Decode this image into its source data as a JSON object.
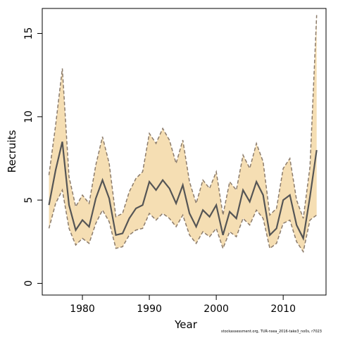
{
  "chart_data": {
    "type": "line",
    "xlabel": "Year",
    "ylabel": "Recruits",
    "xlim": [
      1974,
      2016.4
    ],
    "ylim": [
      -0.7,
      16.5
    ],
    "x_ticks": [
      1980,
      1990,
      2000,
      2010
    ],
    "y_ticks": [
      0,
      5,
      10,
      15
    ],
    "grid": false,
    "colors": {
      "band": "#f5deb3",
      "line": "#555555",
      "bound": "#8b7b6b"
    },
    "x": [
      1975,
      1976,
      1977,
      1978,
      1979,
      1980,
      1981,
      1982,
      1983,
      1984,
      1985,
      1986,
      1987,
      1988,
      1989,
      1990,
      1991,
      1992,
      1993,
      1994,
      1995,
      1996,
      1997,
      1998,
      1999,
      2000,
      2001,
      2002,
      2003,
      2004,
      2005,
      2006,
      2007,
      2008,
      2009,
      2010,
      2011,
      2012,
      2013,
      2014,
      2015
    ],
    "series": [
      {
        "values": [
          4.7,
          6.8,
          8.5,
          4.7,
          3.2,
          3.8,
          3.4,
          5.1,
          6.2,
          5.1,
          2.9,
          3.0,
          3.9,
          4.5,
          4.7,
          6.1,
          5.6,
          6.2,
          5.7,
          4.8,
          5.9,
          4.2,
          3.4,
          4.4,
          4.0,
          4.7,
          2.9,
          4.3,
          3.9,
          5.6,
          4.9,
          6.1,
          5.3,
          2.9,
          3.3,
          5.0,
          5.3,
          3.5,
          2.7,
          5.2,
          8.0
        ]
      },
      {
        "values": [
          6.5,
          9.5,
          12.9,
          6.4,
          4.6,
          5.3,
          4.8,
          7.1,
          8.8,
          7.2,
          4.0,
          4.2,
          5.5,
          6.3,
          6.7,
          9.0,
          8.4,
          9.3,
          8.6,
          7.2,
          8.6,
          6.1,
          4.8,
          6.2,
          5.7,
          6.7,
          4.1,
          6.1,
          5.6,
          7.7,
          6.9,
          8.4,
          7.3,
          4.1,
          4.5,
          6.9,
          7.5,
          5.0,
          3.9,
          7.0,
          16.1
        ]
      },
      {
        "values": [
          3.3,
          4.8,
          5.6,
          3.3,
          2.3,
          2.7,
          2.4,
          3.6,
          4.4,
          3.7,
          2.1,
          2.2,
          2.9,
          3.2,
          3.3,
          4.2,
          3.8,
          4.2,
          3.9,
          3.4,
          4.1,
          2.9,
          2.4,
          3.1,
          2.8,
          3.3,
          2.1,
          3.1,
          2.8,
          3.9,
          3.5,
          4.4,
          3.9,
          2.1,
          2.4,
          3.6,
          3.8,
          2.5,
          1.9,
          3.8,
          4.1
        ]
      }
    ]
  },
  "footer_text": "stockassessment.org, TUR-nsea_2016-take3_no0s, r7023"
}
